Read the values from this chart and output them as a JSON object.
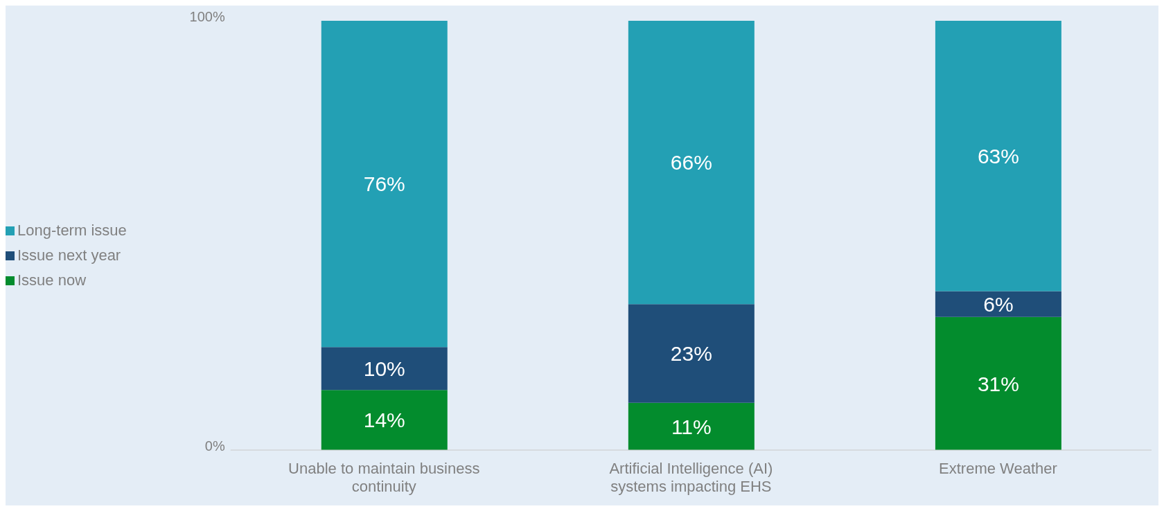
{
  "chart_data": {
    "type": "bar",
    "stacked": true,
    "categories": [
      "Unable to maintain business continuity",
      "Artificial Intelligence (AI) systems impacting EHS",
      "Extreme Weather"
    ],
    "series": [
      {
        "name": "Issue now",
        "color": "#038c2d",
        "values": [
          14,
          11,
          31
        ],
        "value_labels": [
          "14%",
          "11%",
          "31%"
        ]
      },
      {
        "name": "Issue next year",
        "color": "#1f4e79",
        "values": [
          10,
          23,
          6
        ],
        "value_labels": [
          "10%",
          "23%",
          "6%"
        ]
      },
      {
        "name": "Long-term issue",
        "color": "#23a0b4",
        "values": [
          76,
          66,
          63
        ],
        "value_labels": [
          "76%",
          "66%",
          "63%"
        ]
      }
    ],
    "ylim": [
      0,
      100
    ],
    "yticks": [
      {
        "value": 0,
        "label": "0%"
      },
      {
        "value": 100,
        "label": "100%"
      }
    ],
    "grid": false,
    "legend": "left"
  }
}
